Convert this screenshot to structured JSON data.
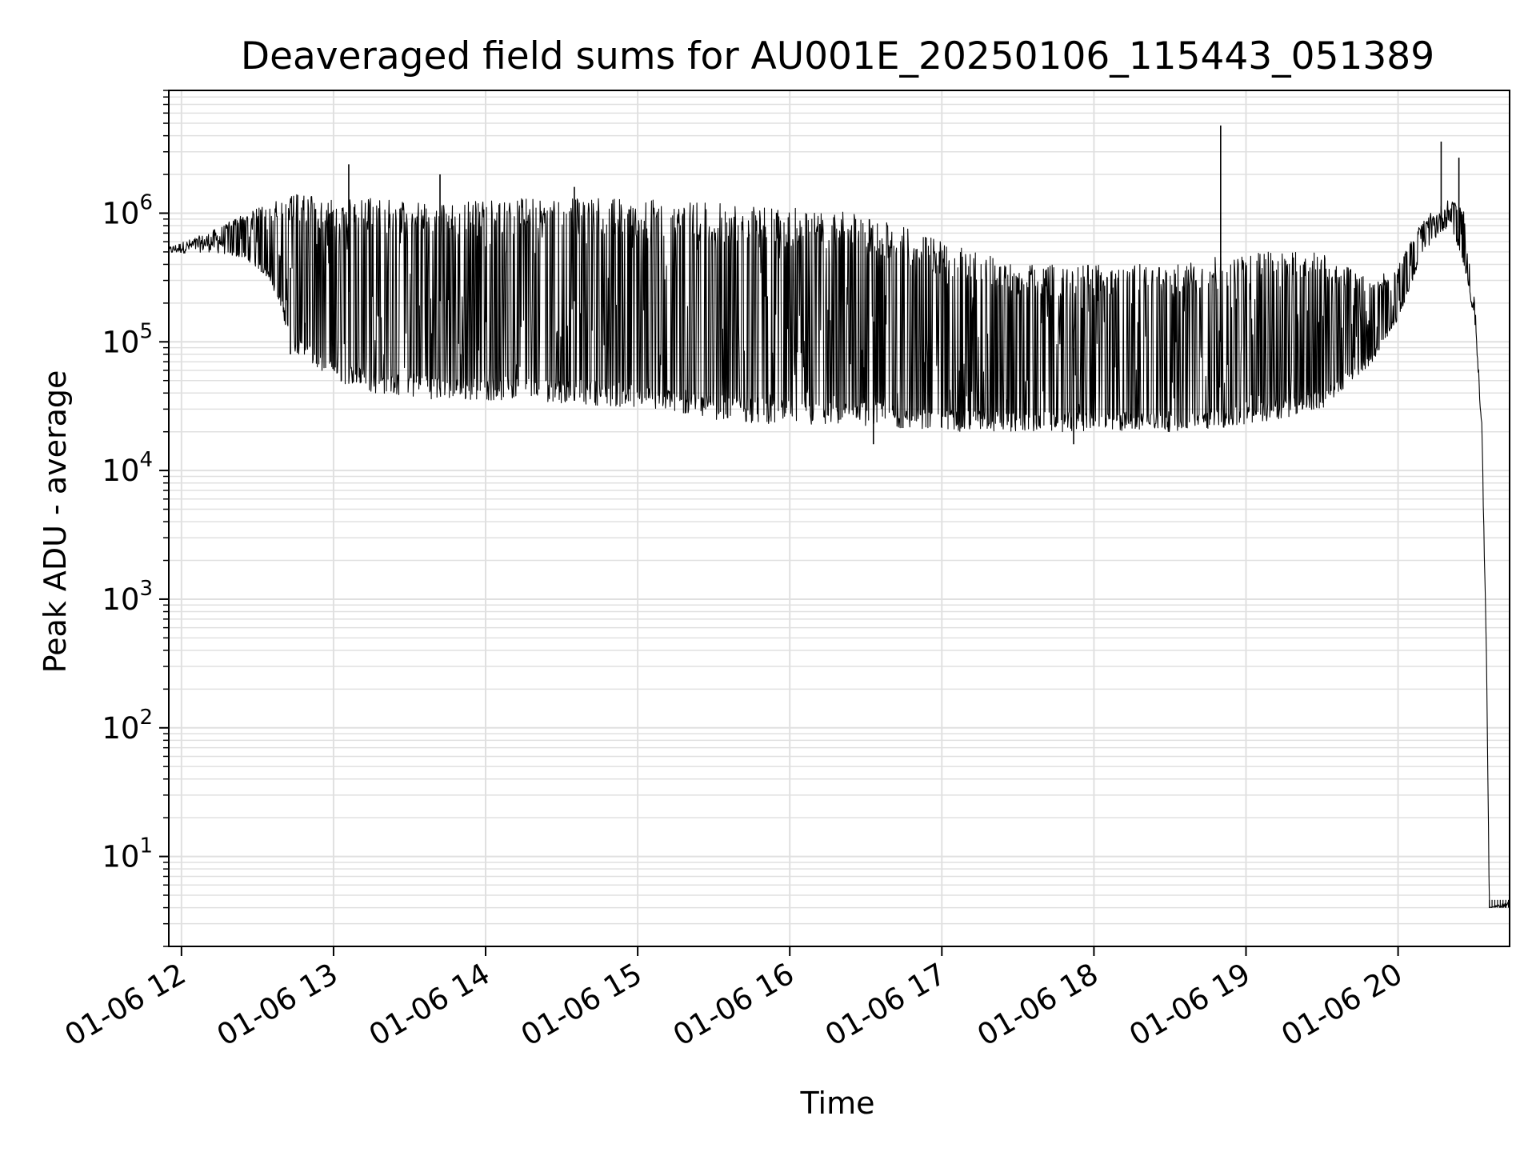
{
  "chart_data": {
    "type": "line",
    "title": "Deaveraged field sums for AU001E_20250106_115443_051389",
    "xlabel": "Time",
    "ylabel": "Peak ADU - average",
    "yscale": "log",
    "ylim": [
      2,
      9000000
    ],
    "xlim": [
      "01-06 11:55",
      "01-06 20:44"
    ],
    "grid": true,
    "line_color": "#000000",
    "grid_color": "#e0e0e0",
    "x_ticks": [
      {
        "label": "01-06 12",
        "hour": 12
      },
      {
        "label": "01-06 13",
        "hour": 13
      },
      {
        "label": "01-06 14",
        "hour": 14
      },
      {
        "label": "01-06 15",
        "hour": 15
      },
      {
        "label": "01-06 16",
        "hour": 16
      },
      {
        "label": "01-06 17",
        "hour": 17
      },
      {
        "label": "01-06 18",
        "hour": 18
      },
      {
        "label": "01-06 19",
        "hour": 19
      },
      {
        "label": "01-06 20",
        "hour": 20
      }
    ],
    "y_ticks": [
      {
        "base": "10",
        "exp": "1",
        "value": 10
      },
      {
        "base": "10",
        "exp": "2",
        "value": 100
      },
      {
        "base": "10",
        "exp": "3",
        "value": 1000
      },
      {
        "base": "10",
        "exp": "4",
        "value": 10000
      },
      {
        "base": "10",
        "exp": "5",
        "value": 100000
      },
      {
        "base": "10",
        "exp": "6",
        "value": 1000000
      }
    ],
    "series": [
      {
        "envelope": [
          {
            "time": "01-06 11:55",
            "upper": 550000,
            "lower": 480000
          },
          {
            "time": "01-06 12:10",
            "upper": 700000,
            "lower": 500000
          },
          {
            "time": "01-06 12:25",
            "upper": 1000000,
            "lower": 450000
          },
          {
            "time": "01-06 12:35",
            "upper": 1200000,
            "lower": 300000
          },
          {
            "time": "01-06 12:45",
            "upper": 1400000,
            "lower": 80000
          },
          {
            "time": "01-06 13:00",
            "upper": 1300000,
            "lower": 50000
          },
          {
            "time": "01-06 13:15",
            "upper": 1300000,
            "lower": 40000
          },
          {
            "time": "01-06 13:45",
            "upper": 1200000,
            "lower": 35000
          },
          {
            "time": "01-06 14:15",
            "upper": 1300000,
            "lower": 35000
          },
          {
            "time": "01-06 14:45",
            "upper": 1300000,
            "lower": 32000
          },
          {
            "time": "01-06 15:00",
            "upper": 1300000,
            "lower": 30000
          },
          {
            "time": "01-06 15:30",
            "upper": 1200000,
            "lower": 25000
          },
          {
            "time": "01-06 16:00",
            "upper": 1100000,
            "lower": 22000
          },
          {
            "time": "01-06 16:30",
            "upper": 1000000,
            "lower": 22000
          },
          {
            "time": "01-06 17:00",
            "upper": 600000,
            "lower": 20000
          },
          {
            "time": "01-06 17:30",
            "upper": 400000,
            "lower": 20000
          },
          {
            "time": "01-06 18:00",
            "upper": 400000,
            "lower": 20000
          },
          {
            "time": "01-06 18:30",
            "upper": 400000,
            "lower": 20000
          },
          {
            "time": "01-06 19:00",
            "upper": 500000,
            "lower": 22000
          },
          {
            "time": "01-06 19:30",
            "upper": 500000,
            "lower": 30000
          },
          {
            "time": "01-06 19:50",
            "upper": 300000,
            "lower": 70000
          },
          {
            "time": "01-06 20:00",
            "upper": 400000,
            "lower": 150000
          },
          {
            "time": "01-06 20:10",
            "upper": 900000,
            "lower": 500000
          },
          {
            "time": "01-06 20:20",
            "upper": 1300000,
            "lower": 800000
          },
          {
            "time": "01-06 20:26",
            "upper": 1100000,
            "lower": 400000
          },
          {
            "time": "01-06 20:30",
            "upper": 250000,
            "lower": 150000
          },
          {
            "time": "01-06 20:33",
            "upper": 30000,
            "lower": 20000
          },
          {
            "time": "01-06 20:35",
            "upper": 300,
            "lower": 200
          },
          {
            "time": "01-06 20:36",
            "upper": 4,
            "lower": 4
          },
          {
            "time": "01-06 20:44",
            "upper": 4.5,
            "lower": 4
          }
        ],
        "spikes": [
          {
            "time": "01-06 13:06",
            "value": 2400000
          },
          {
            "time": "01-06 13:42",
            "value": 2000000
          },
          {
            "time": "01-06 14:35",
            "value": 1600000
          },
          {
            "time": "01-06 18:50",
            "value": 4800000
          },
          {
            "time": "01-06 20:17",
            "value": 3600000
          },
          {
            "time": "01-06 20:24",
            "value": 2700000
          },
          {
            "time": "01-06 16:33",
            "value": 16000
          },
          {
            "time": "01-06 17:52",
            "value": 16000
          },
          {
            "time": "01-06 12:43",
            "value": 80000
          }
        ]
      }
    ]
  }
}
